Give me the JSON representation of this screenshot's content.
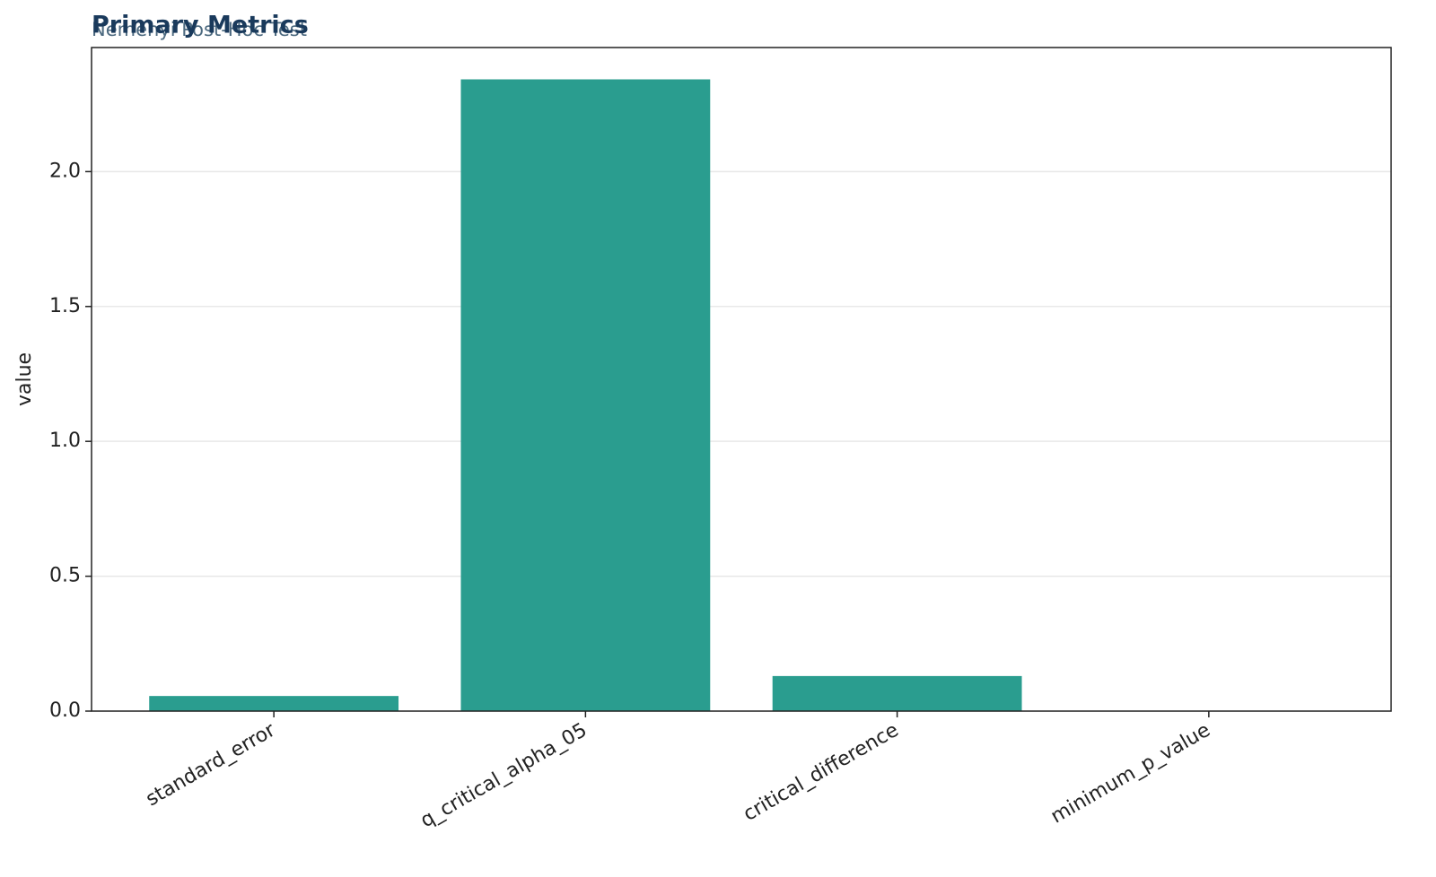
{
  "chart_data": {
    "type": "bar",
    "title": "Primary Metrics",
    "subtitle": "Nemenyi Post-Hoc Test",
    "y_label": "value",
    "categories": [
      "standard_error",
      "q_critical_alpha_05",
      "critical_difference",
      "minimum_p_value"
    ],
    "values": [
      0.056,
      2.342,
      0.13,
      0.0
    ],
    "color": "#2a9d8f",
    "ylim": [
      0,
      2.46
    ],
    "yticks": [
      0.0,
      0.5,
      1.0,
      1.5,
      2.0
    ],
    "grid": true
  }
}
